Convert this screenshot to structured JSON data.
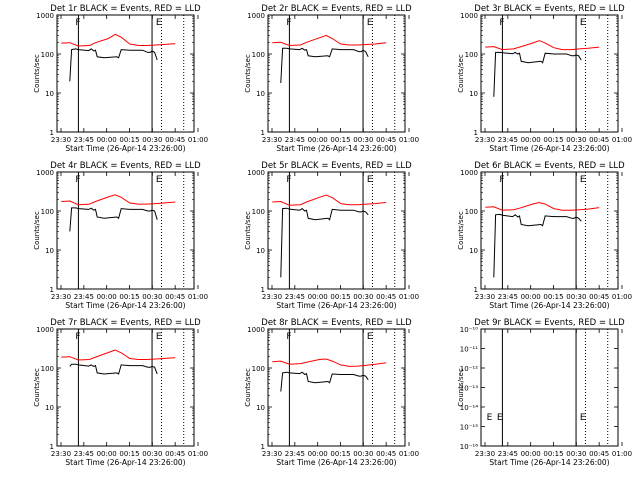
{
  "figure": {
    "xlabel": "Start Time (26-Apr-14 23:26:00)",
    "ylabel": "Counts/sec",
    "series_colors": {
      "events": "#000000",
      "lld": "#ff0000"
    },
    "x_ticks": [
      "23:30",
      "23:45",
      "00:00",
      "00:15",
      "00:30",
      "00:45",
      "01:00"
    ]
  },
  "chart_data": [
    {
      "type": "line",
      "title": "Det 1r BLACK = Events, RED = LLD",
      "yscale": "log",
      "yticks": [
        "1",
        "10",
        "100",
        "1000"
      ],
      "flags": [
        {
          "label": "F",
          "t": 23.75
        },
        {
          "label": "E",
          "t": 24.69
        }
      ],
      "solid_lines": [
        23.75,
        24.61
      ],
      "dotted_lines": [
        24.72,
        24.98
      ],
      "events": [
        [
          23.65,
          20
        ],
        [
          23.67,
          130
        ],
        [
          23.72,
          135
        ],
        [
          23.75,
          130
        ],
        [
          23.87,
          122
        ],
        [
          23.9,
          135
        ],
        [
          23.93,
          120
        ],
        [
          23.95,
          125
        ],
        [
          23.97,
          85
        ],
        [
          24.05,
          80
        ],
        [
          24.2,
          85
        ],
        [
          24.22,
          80
        ],
        [
          24.25,
          130
        ],
        [
          24.35,
          125
        ],
        [
          24.5,
          125
        ],
        [
          24.56,
          110
        ],
        [
          24.59,
          110
        ],
        [
          24.61,
          120
        ],
        [
          24.64,
          110
        ],
        [
          24.67,
          70
        ]
      ],
      "lld": [
        [
          23.55,
          190
        ],
        [
          23.65,
          195
        ],
        [
          23.75,
          160
        ],
        [
          23.88,
          165
        ],
        [
          23.95,
          195
        ],
        [
          24.1,
          250
        ],
        [
          24.18,
          320
        ],
        [
          24.25,
          270
        ],
        [
          24.35,
          180
        ],
        [
          24.45,
          165
        ],
        [
          24.55,
          165
        ],
        [
          24.65,
          170
        ],
        [
          24.75,
          175
        ],
        [
          24.88,
          185
        ]
      ]
    },
    {
      "type": "line",
      "title": "Det 2r BLACK = Events, RED = LLD",
      "yscale": "log",
      "yticks": [
        "1",
        "10",
        "100",
        "1000"
      ],
      "flags": [
        {
          "label": "F",
          "t": 23.75
        },
        {
          "label": "E",
          "t": 24.69
        }
      ],
      "solid_lines": [
        23.75,
        24.61
      ],
      "dotted_lines": [
        24.72,
        24.98
      ],
      "events": [
        [
          23.65,
          18
        ],
        [
          23.67,
          140
        ],
        [
          23.72,
          140
        ],
        [
          23.75,
          135
        ],
        [
          23.87,
          130
        ],
        [
          23.9,
          140
        ],
        [
          23.93,
          125
        ],
        [
          23.95,
          130
        ],
        [
          23.97,
          90
        ],
        [
          24.05,
          85
        ],
        [
          24.2,
          90
        ],
        [
          24.22,
          85
        ],
        [
          24.25,
          135
        ],
        [
          24.35,
          130
        ],
        [
          24.5,
          130
        ],
        [
          24.56,
          115
        ],
        [
          24.59,
          115
        ],
        [
          24.61,
          125
        ],
        [
          24.64,
          115
        ],
        [
          24.67,
          85
        ]
      ],
      "lld": [
        [
          23.55,
          195
        ],
        [
          23.65,
          200
        ],
        [
          23.75,
          165
        ],
        [
          23.88,
          170
        ],
        [
          23.95,
          200
        ],
        [
          24.1,
          260
        ],
        [
          24.18,
          300
        ],
        [
          24.25,
          250
        ],
        [
          24.35,
          180
        ],
        [
          24.45,
          170
        ],
        [
          24.55,
          170
        ],
        [
          24.65,
          175
        ],
        [
          24.75,
          180
        ],
        [
          24.88,
          195
        ]
      ]
    },
    {
      "type": "line",
      "title": "Det 3r BLACK = Events, RED = LLD",
      "yscale": "log",
      "yticks": [
        "1",
        "10",
        "100",
        "1000"
      ],
      "flags": [
        {
          "label": "F",
          "t": 23.75
        },
        {
          "label": "E",
          "t": 24.69
        }
      ],
      "solid_lines": [
        23.75,
        24.61
      ],
      "dotted_lines": [
        24.72,
        24.98
      ],
      "events": [
        [
          23.65,
          8
        ],
        [
          23.67,
          110
        ],
        [
          23.72,
          110
        ],
        [
          23.75,
          108
        ],
        [
          23.87,
          102
        ],
        [
          23.9,
          110
        ],
        [
          23.93,
          100
        ],
        [
          23.95,
          105
        ],
        [
          23.97,
          65
        ],
        [
          24.05,
          60
        ],
        [
          24.2,
          65
        ],
        [
          24.22,
          60
        ],
        [
          24.25,
          105
        ],
        [
          24.35,
          100
        ],
        [
          24.5,
          100
        ],
        [
          24.56,
          90
        ],
        [
          24.59,
          90
        ],
        [
          24.61,
          95
        ],
        [
          24.64,
          90
        ],
        [
          24.67,
          70
        ]
      ],
      "lld": [
        [
          23.55,
          150
        ],
        [
          23.65,
          155
        ],
        [
          23.75,
          130
        ],
        [
          23.88,
          135
        ],
        [
          23.95,
          150
        ],
        [
          24.1,
          190
        ],
        [
          24.18,
          220
        ],
        [
          24.25,
          190
        ],
        [
          24.35,
          145
        ],
        [
          24.45,
          130
        ],
        [
          24.55,
          130
        ],
        [
          24.65,
          135
        ],
        [
          24.75,
          140
        ],
        [
          24.88,
          150
        ]
      ]
    },
    {
      "type": "line",
      "title": "Det 4r BLACK = Events, RED = LLD",
      "yscale": "log",
      "yticks": [
        "1",
        "10",
        "100",
        "1000"
      ],
      "flags": [
        {
          "label": "F",
          "t": 23.75
        },
        {
          "label": "E",
          "t": 24.69
        }
      ],
      "solid_lines": [
        23.75,
        24.61
      ],
      "dotted_lines": [
        24.72,
        24.98
      ],
      "events": [
        [
          23.65,
          30
        ],
        [
          23.67,
          120
        ],
        [
          23.72,
          120
        ],
        [
          23.75,
          115
        ],
        [
          23.87,
          110
        ],
        [
          23.9,
          118
        ],
        [
          23.93,
          105
        ],
        [
          23.95,
          110
        ],
        [
          23.97,
          70
        ],
        [
          24.05,
          65
        ],
        [
          24.2,
          70
        ],
        [
          24.22,
          65
        ],
        [
          24.25,
          115
        ],
        [
          24.35,
          110
        ],
        [
          24.5,
          110
        ],
        [
          24.56,
          100
        ],
        [
          24.59,
          100
        ],
        [
          24.61,
          105
        ],
        [
          24.64,
          100
        ],
        [
          24.67,
          60
        ]
      ],
      "lld": [
        [
          23.55,
          175
        ],
        [
          23.65,
          180
        ],
        [
          23.75,
          145
        ],
        [
          23.88,
          150
        ],
        [
          23.95,
          175
        ],
        [
          24.1,
          230
        ],
        [
          24.18,
          260
        ],
        [
          24.25,
          225
        ],
        [
          24.35,
          160
        ],
        [
          24.45,
          150
        ],
        [
          24.55,
          150
        ],
        [
          24.65,
          155
        ],
        [
          24.75,
          160
        ],
        [
          24.88,
          170
        ]
      ]
    },
    {
      "type": "line",
      "title": "Det 5r BLACK = Events, RED = LLD",
      "yscale": "log",
      "yticks": [
        "1",
        "10",
        "100",
        "1000"
      ],
      "flags": [
        {
          "label": "F",
          "t": 23.75
        },
        {
          "label": "E",
          "t": 24.69
        }
      ],
      "solid_lines": [
        23.75,
        24.61
      ],
      "dotted_lines": [
        24.72,
        24.98
      ],
      "events": [
        [
          23.65,
          2
        ],
        [
          23.67,
          115
        ],
        [
          23.72,
          118
        ],
        [
          23.75,
          112
        ],
        [
          23.87,
          105
        ],
        [
          23.9,
          115
        ],
        [
          23.93,
          100
        ],
        [
          23.95,
          105
        ],
        [
          23.97,
          65
        ],
        [
          24.05,
          60
        ],
        [
          24.2,
          65
        ],
        [
          24.22,
          60
        ],
        [
          24.25,
          110
        ],
        [
          24.35,
          105
        ],
        [
          24.5,
          105
        ],
        [
          24.56,
          95
        ],
        [
          24.59,
          95
        ],
        [
          24.61,
          100
        ],
        [
          24.64,
          95
        ],
        [
          24.67,
          80
        ]
      ],
      "lld": [
        [
          23.55,
          170
        ],
        [
          23.65,
          175
        ],
        [
          23.75,
          140
        ],
        [
          23.88,
          145
        ],
        [
          23.95,
          170
        ],
        [
          24.1,
          225
        ],
        [
          24.18,
          255
        ],
        [
          24.25,
          220
        ],
        [
          24.35,
          155
        ],
        [
          24.45,
          145
        ],
        [
          24.55,
          145
        ],
        [
          24.65,
          150
        ],
        [
          24.75,
          155
        ],
        [
          24.88,
          165
        ]
      ]
    },
    {
      "type": "line",
      "title": "Det 6r BLACK = Events, RED = LLD",
      "yscale": "log",
      "yticks": [
        "1",
        "10",
        "100",
        "1000"
      ],
      "flags": [
        {
          "label": "F",
          "t": 23.75
        },
        {
          "label": "E",
          "t": 24.69
        }
      ],
      "solid_lines": [
        23.75,
        24.61
      ],
      "dotted_lines": [
        24.72,
        24.98
      ],
      "events": [
        [
          23.65,
          2
        ],
        [
          23.67,
          80
        ],
        [
          23.72,
          82
        ],
        [
          23.75,
          78
        ],
        [
          23.87,
          72
        ],
        [
          23.9,
          80
        ],
        [
          23.93,
          70
        ],
        [
          23.95,
          75
        ],
        [
          23.97,
          45
        ],
        [
          24.05,
          42
        ],
        [
          24.2,
          45
        ],
        [
          24.22,
          42
        ],
        [
          24.25,
          75
        ],
        [
          24.35,
          72
        ],
        [
          24.5,
          72
        ],
        [
          24.56,
          65
        ],
        [
          24.59,
          65
        ],
        [
          24.61,
          70
        ],
        [
          24.64,
          65
        ],
        [
          24.67,
          55
        ]
      ],
      "lld": [
        [
          23.55,
          125
        ],
        [
          23.65,
          128
        ],
        [
          23.75,
          105
        ],
        [
          23.88,
          108
        ],
        [
          23.95,
          118
        ],
        [
          24.1,
          150
        ],
        [
          24.18,
          165
        ],
        [
          24.25,
          150
        ],
        [
          24.35,
          115
        ],
        [
          24.45,
          105
        ],
        [
          24.55,
          105
        ],
        [
          24.65,
          108
        ],
        [
          24.75,
          112
        ],
        [
          24.88,
          122
        ]
      ]
    },
    {
      "type": "line",
      "title": "Det 7r BLACK = Events, RED = LLD",
      "yscale": "log",
      "yticks": [
        "1",
        "10",
        "100",
        "1000"
      ],
      "flags": [
        {
          "label": "F",
          "t": 23.75
        },
        {
          "label": "E",
          "t": 24.69
        }
      ],
      "solid_lines": [
        23.75,
        24.61
      ],
      "dotted_lines": [
        24.72,
        24.98
      ],
      "events": [
        [
          23.65,
          110
        ],
        [
          23.67,
          125
        ],
        [
          23.72,
          125
        ],
        [
          23.75,
          120
        ],
        [
          23.87,
          112
        ],
        [
          23.9,
          120
        ],
        [
          23.93,
          110
        ],
        [
          23.95,
          115
        ],
        [
          23.97,
          75
        ],
        [
          24.05,
          70
        ],
        [
          24.2,
          75
        ],
        [
          24.22,
          70
        ],
        [
          24.25,
          120
        ],
        [
          24.35,
          115
        ],
        [
          24.5,
          115
        ],
        [
          24.56,
          105
        ],
        [
          24.59,
          105
        ],
        [
          24.61,
          110
        ],
        [
          24.64,
          105
        ],
        [
          24.67,
          70
        ]
      ],
      "lld": [
        [
          23.55,
          190
        ],
        [
          23.65,
          195
        ],
        [
          23.75,
          160
        ],
        [
          23.88,
          165
        ],
        [
          23.95,
          190
        ],
        [
          24.1,
          250
        ],
        [
          24.18,
          290
        ],
        [
          24.25,
          245
        ],
        [
          24.35,
          175
        ],
        [
          24.45,
          165
        ],
        [
          24.55,
          165
        ],
        [
          24.65,
          170
        ],
        [
          24.75,
          175
        ],
        [
          24.88,
          185
        ]
      ]
    },
    {
      "type": "line",
      "title": "Det 8r BLACK = Events, RED = LLD",
      "yscale": "log",
      "yticks": [
        "1",
        "10",
        "100",
        "1000"
      ],
      "flags": [
        {
          "label": "F",
          "t": 23.75
        },
        {
          "label": "E",
          "t": 24.69
        }
      ],
      "solid_lines": [
        23.75,
        24.61
      ],
      "dotted_lines": [
        24.72,
        24.98
      ],
      "events": [
        [
          23.65,
          25
        ],
        [
          23.67,
          75
        ],
        [
          23.72,
          78
        ],
        [
          23.75,
          75
        ],
        [
          23.87,
          72
        ],
        [
          23.9,
          78
        ],
        [
          23.93,
          68
        ],
        [
          23.95,
          72
        ],
        [
          23.97,
          45
        ],
        [
          24.05,
          42
        ],
        [
          24.2,
          45
        ],
        [
          24.22,
          42
        ],
        [
          24.25,
          70
        ],
        [
          24.35,
          68
        ],
        [
          24.5,
          68
        ],
        [
          24.56,
          62
        ],
        [
          24.59,
          62
        ],
        [
          24.61,
          65
        ],
        [
          24.64,
          62
        ],
        [
          24.67,
          50
        ]
      ],
      "lld": [
        [
          23.55,
          145
        ],
        [
          23.65,
          150
        ],
        [
          23.75,
          125
        ],
        [
          23.88,
          130
        ],
        [
          23.95,
          140
        ],
        [
          24.1,
          165
        ],
        [
          24.18,
          170
        ],
        [
          24.25,
          150
        ],
        [
          24.35,
          120
        ],
        [
          24.45,
          110
        ],
        [
          24.55,
          112
        ],
        [
          24.65,
          118
        ],
        [
          24.75,
          125
        ],
        [
          24.88,
          135
        ]
      ]
    },
    {
      "type": "line",
      "title": "Det 9r BLACK = Events, RED = LLD",
      "yscale": "log",
      "yticks": [
        "10⁻¹⁰",
        "10⁻¹¹",
        "10⁻¹²",
        "10⁻¹³",
        "10⁻¹⁴",
        "10⁻¹⁵",
        "10⁻¹⁶"
      ],
      "flags": [
        {
          "label": "E",
          "t": 23.6
        },
        {
          "label": "E",
          "t": 23.72
        },
        {
          "label": "E",
          "t": 24.69
        }
      ],
      "solid_lines": [
        23.75,
        24.61
      ],
      "dotted_lines": [
        24.72,
        24.98
      ],
      "events": [],
      "lld": []
    }
  ]
}
